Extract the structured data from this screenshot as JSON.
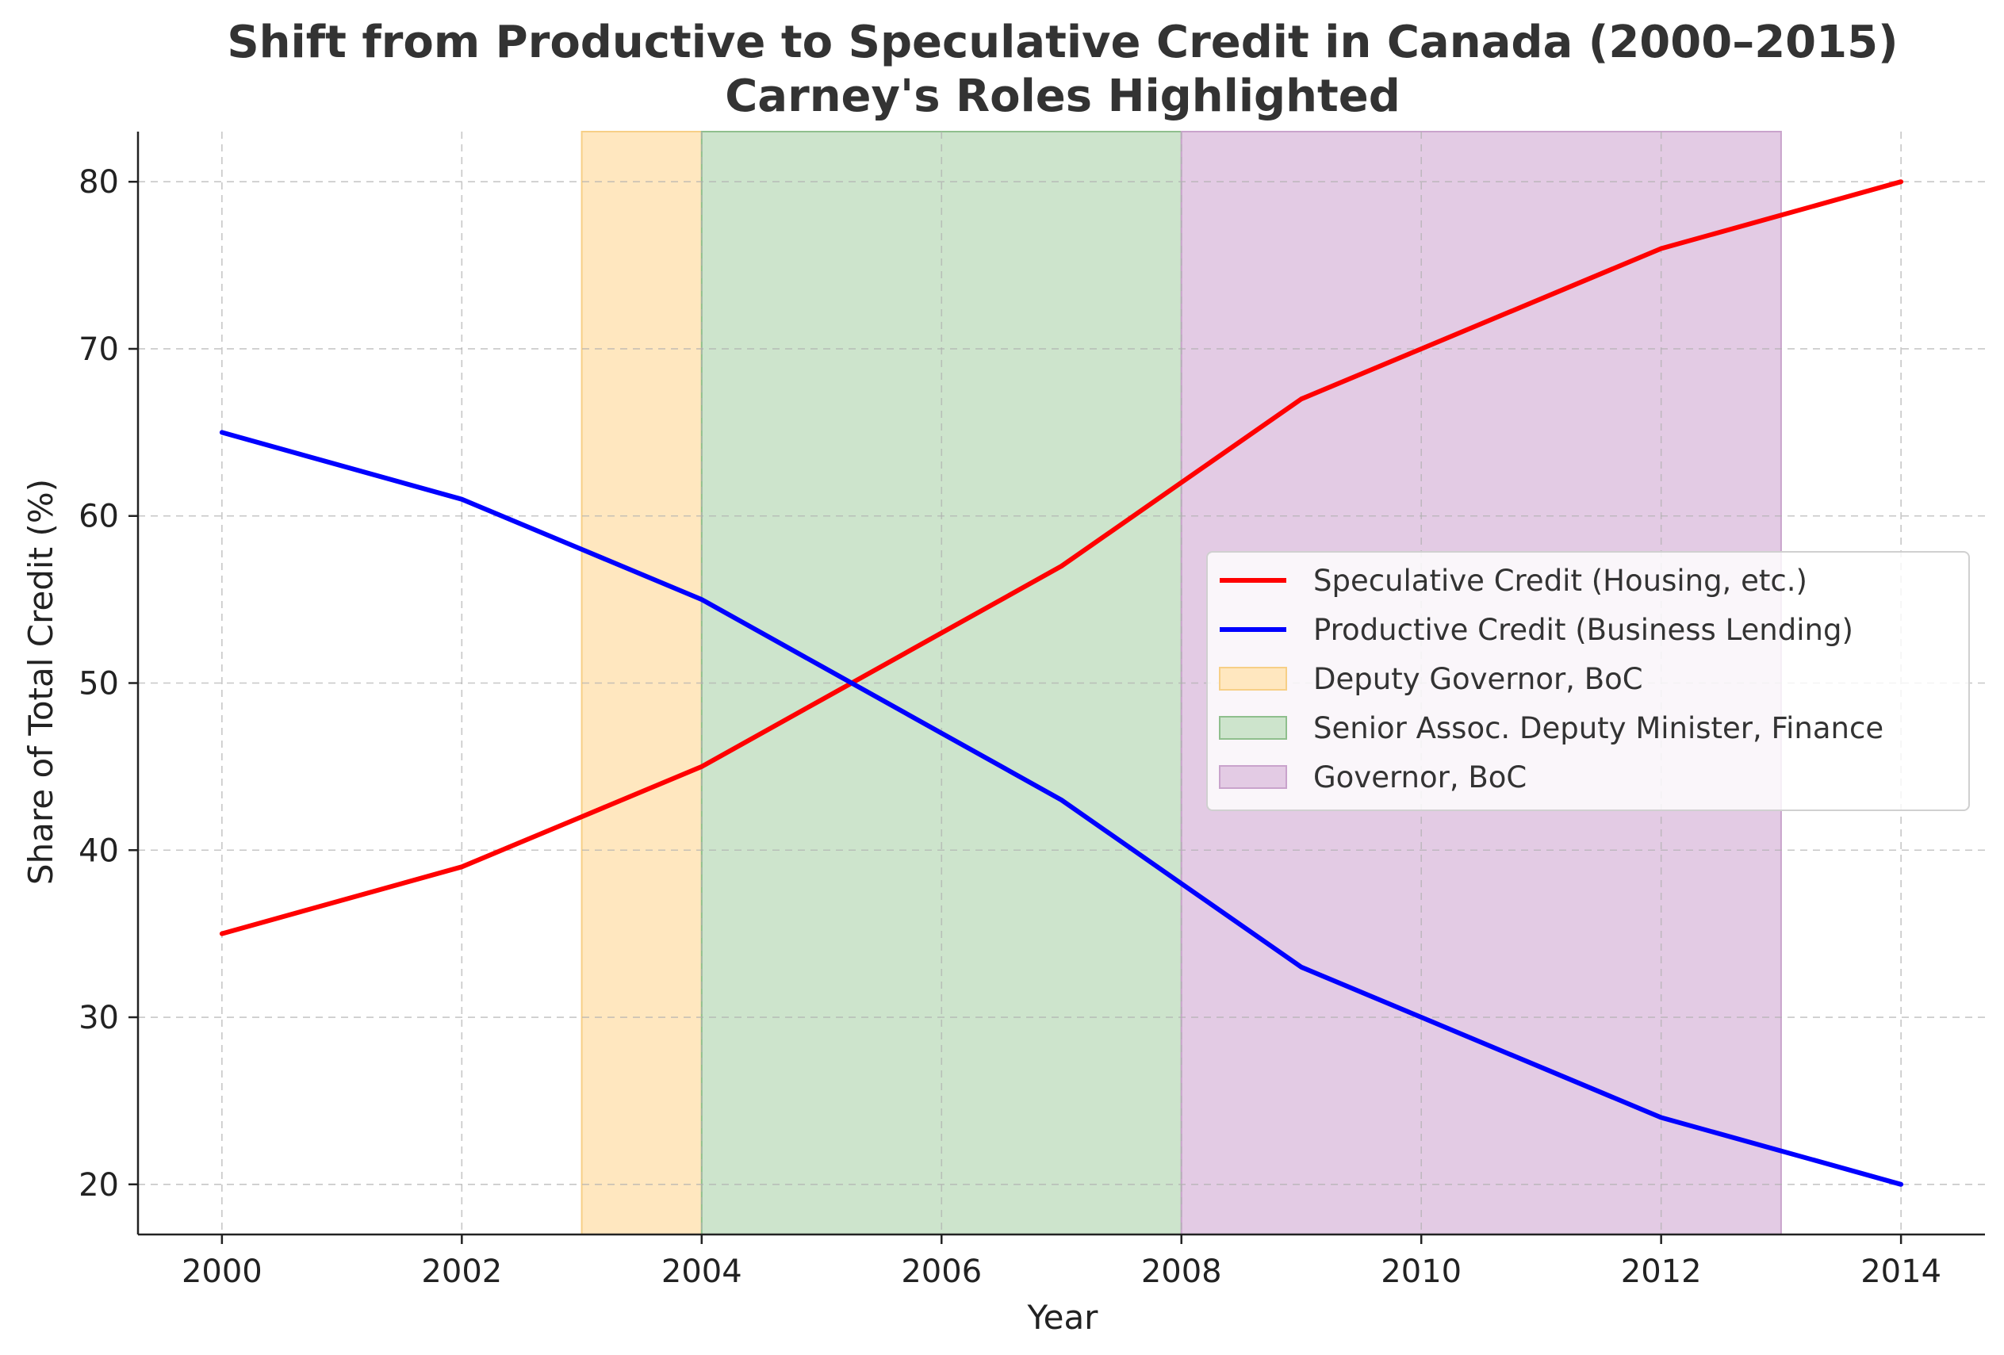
{
  "chart_data": {
    "type": "line",
    "title": "Shift from Productive to Speculative Credit in Canada (2000–2015)",
    "subtitle": "Carney's Roles Highlighted",
    "xlabel": "Year",
    "ylabel": "Share of Total Credit (%)",
    "xlim": [
      1999.3,
      2014.7
    ],
    "ylim": [
      17,
      83
    ],
    "x_ticks": [
      2000,
      2002,
      2004,
      2006,
      2008,
      2010,
      2012,
      2014
    ],
    "y_ticks": [
      20,
      30,
      40,
      50,
      60,
      70,
      80
    ],
    "grid": true,
    "legend_position": "center-right",
    "series": [
      {
        "name": "Speculative Credit (Housing, etc.)",
        "color": "#ff0000",
        "x": [
          2000,
          2002,
          2003,
          2004,
          2005,
          2006,
          2007,
          2008,
          2009,
          2010,
          2011,
          2012,
          2013,
          2014
        ],
        "values": [
          35,
          39,
          42,
          45,
          49,
          53,
          57,
          62,
          67,
          70,
          73,
          76,
          78,
          80
        ]
      },
      {
        "name": "Productive Credit (Business Lending)",
        "color": "#0000ff",
        "x": [
          2000,
          2002,
          2003,
          2004,
          2005,
          2006,
          2007,
          2008,
          2009,
          2010,
          2011,
          2012,
          2013,
          2014
        ],
        "values": [
          65,
          61,
          58,
          55,
          51,
          47,
          43,
          38,
          33,
          30,
          27,
          24,
          22,
          20
        ]
      }
    ],
    "spans": [
      {
        "name": "Deputy Governor, BoC",
        "start": 2003,
        "end": 2004,
        "fill": "#ffe7bf",
        "edge": "#f7cf86"
      },
      {
        "name": "Senior Assoc. Deputy Minister, Finance",
        "start": 2004,
        "end": 2008,
        "fill": "#cde4cc",
        "edge": "#8fbf8d"
      },
      {
        "name": "Governor, BoC",
        "start": 2008,
        "end": 2013,
        "fill": "#e3cbe4",
        "edge": "#c9a3cc"
      }
    ]
  }
}
